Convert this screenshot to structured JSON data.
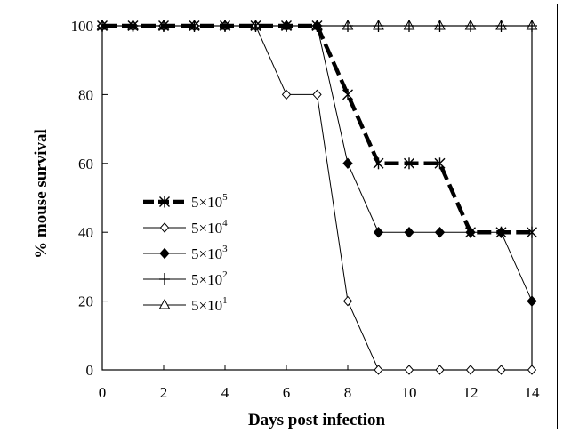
{
  "chart_data": {
    "type": "line",
    "title": "",
    "xlabel": "Days post infection",
    "ylabel": "% mouse survival",
    "xlim": [
      0,
      14
    ],
    "ylim": [
      0,
      100
    ],
    "xticks": [
      0,
      2,
      4,
      6,
      8,
      10,
      12,
      14
    ],
    "yticks": [
      0,
      20,
      40,
      60,
      80,
      100
    ],
    "grid": false,
    "legend_position": "middle-left",
    "x": [
      0,
      1,
      2,
      3,
      4,
      5,
      6,
      7,
      8,
      9,
      10,
      11,
      12,
      13,
      14
    ],
    "series": [
      {
        "name": "5×10^5",
        "label_base": "5×10",
        "label_exp": "5",
        "marker": "asterisk",
        "line_style": "thick-dashed",
        "color": "#000000",
        "x": [
          0,
          1,
          2,
          3,
          4,
          5,
          6,
          7,
          8,
          9,
          10,
          11,
          12,
          13,
          14
        ],
        "values": [
          100,
          100,
          100,
          100,
          100,
          100,
          100,
          100,
          80,
          60,
          60,
          60,
          40,
          40,
          40
        ]
      },
      {
        "name": "5×10^4",
        "label_base": "5×10",
        "label_exp": "4",
        "marker": "open-diamond",
        "line_style": "thin",
        "color": "#000000",
        "x": [
          0,
          1,
          2,
          3,
          4,
          5,
          6,
          7,
          8,
          9,
          10,
          11,
          12,
          13,
          14
        ],
        "values": [
          100,
          100,
          100,
          100,
          100,
          100,
          80,
          80,
          20,
          0,
          0,
          0,
          0,
          0,
          0
        ]
      },
      {
        "name": "5×10^3",
        "label_base": "5×10",
        "label_exp": "3",
        "marker": "filled-diamond",
        "line_style": "thin",
        "color": "#000000",
        "x": [
          0,
          1,
          2,
          3,
          4,
          5,
          6,
          7,
          8,
          9,
          10,
          11,
          12,
          13,
          14
        ],
        "values": [
          100,
          100,
          100,
          100,
          100,
          100,
          100,
          100,
          60,
          40,
          40,
          40,
          40,
          40,
          20
        ]
      },
      {
        "name": "5×10^2",
        "label_base": "5×10",
        "label_exp": "2",
        "marker": "plus",
        "line_style": "thin",
        "color": "#000000",
        "x": [
          0,
          1,
          2,
          3,
          4,
          5,
          6,
          7,
          8,
          9,
          10,
          11,
          12,
          13,
          14
        ],
        "values": [
          100,
          100,
          100,
          100,
          100,
          100,
          100,
          100,
          100,
          100,
          100,
          100,
          100,
          100,
          100
        ]
      },
      {
        "name": "5×10^1",
        "label_base": "5×10",
        "label_exp": "1",
        "marker": "open-triangle",
        "line_style": "thin",
        "color": "#000000",
        "x": [
          0,
          1,
          2,
          3,
          4,
          5,
          6,
          7,
          8,
          9,
          10,
          11,
          12,
          13,
          14
        ],
        "values": [
          100,
          100,
          100,
          100,
          100,
          100,
          100,
          100,
          100,
          100,
          100,
          100,
          100,
          100,
          100
        ]
      }
    ]
  }
}
